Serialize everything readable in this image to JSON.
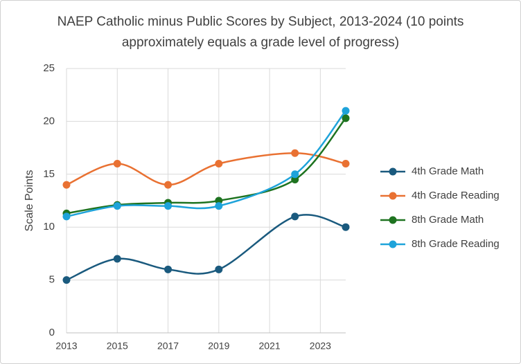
{
  "chart_data": {
    "type": "line",
    "title": "NAEP Catholic minus Public Scores by Subject, 2013-2024 (10 points approximately equals a grade level of progress)",
    "y_label": "Scale Points",
    "x": [
      2013,
      2015,
      2017,
      2019,
      2022,
      2024
    ],
    "xlim": [
      2013,
      2024
    ],
    "xticks": [
      2013,
      2015,
      2017,
      2019,
      2021,
      2023
    ],
    "ylim": [
      0,
      25
    ],
    "yticks": [
      0,
      5,
      10,
      15,
      20,
      25
    ],
    "grid": true,
    "smooth": true,
    "legend": "right",
    "series": [
      {
        "name": "4th Grade Math",
        "color": "#1a5a7e",
        "values": [
          5,
          7,
          6,
          6,
          11,
          10
        ]
      },
      {
        "name": "4th Grade Reading",
        "color": "#e97132",
        "values": [
          14,
          16,
          14,
          16,
          17,
          16
        ]
      },
      {
        "name": "8th Grade Math",
        "color": "#1e7320",
        "values": [
          11.3,
          12.1,
          12.3,
          12.5,
          14.5,
          20.3
        ]
      },
      {
        "name": "8th Grade Reading",
        "color": "#1ea3da",
        "values": [
          11,
          12,
          12,
          12,
          15,
          21
        ]
      }
    ]
  }
}
